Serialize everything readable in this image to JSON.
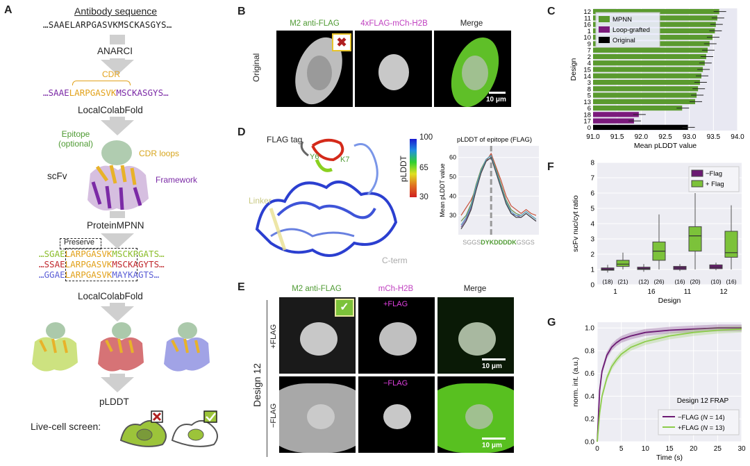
{
  "panelA": {
    "label": "A",
    "title": "Antibody sequence",
    "seq1": "…SAAELARPGASVKMSCKASGYS…",
    "step_anarci": "ANARCI",
    "cdr": "CDR",
    "seq2_pre": "…SAAE",
    "seq2_cdr": "LARPGASVK",
    "seq2_post": "MSCKASGYS…",
    "step_colab1": "LocalColabFold",
    "epitope": "Epitope\n(optional)",
    "cdr_loops": "CDR loops",
    "scfv": "scFv",
    "framework": "Framework",
    "step_mpnn": "ProteinMPNN",
    "preserve": "Preserve",
    "mpnn_seqs": [
      {
        "pre": "…SGAE",
        "mid": "LARPGASVK",
        "post": "MSCKPGATS…",
        "color": "#8bbd2a"
      },
      {
        "pre": "…SSAE",
        "mid": "LARPGASVK",
        "post": "MSCKAGYTS…",
        "color": "#c0282d"
      },
      {
        "pre": "…GGAE",
        "mid": "LARPGASVK",
        "post": "MAYKAGTS…",
        "color": "#5b5ed6"
      }
    ],
    "step_colab2": "LocalColabFold",
    "step_plddt": "pLDDT",
    "live_cell": "Live-cell screen:"
  },
  "panelB": {
    "label": "B",
    "col1": "M2 anti-FLAG",
    "col2": "4xFLAG-mCh-H2B",
    "col3": "Merge",
    "row": "Original",
    "scale": "10 μm"
  },
  "panelC": {
    "label": "C",
    "ylabel": "Design",
    "xlabel": "Mean pLDDT value",
    "legend": [
      "MPNN",
      "Loop-grafted",
      "Original"
    ],
    "colors": {
      "mpnn": "#5a9a2e",
      "loop": "#7b1a7c",
      "orig": "#000000",
      "bg": "#e8e8f2"
    }
  },
  "chart_data": [
    {
      "type": "bar",
      "orientation": "horizontal",
      "ylabel": "Design",
      "xlabel": "Mean pLDDT value",
      "xlim": [
        91.0,
        94.0
      ],
      "xticks": [
        "91.0",
        "91.5",
        "92.0",
        "92.5",
        "93.0",
        "93.5",
        "94.0"
      ],
      "categories": [
        "12",
        "11",
        "16",
        "1",
        "10",
        "9",
        "7",
        "2",
        "4",
        "15",
        "14",
        "3",
        "8",
        "5",
        "13",
        "6",
        "18",
        "17",
        "0"
      ],
      "values": [
        93.62,
        93.58,
        93.55,
        93.53,
        93.48,
        93.42,
        93.38,
        93.35,
        93.32,
        93.28,
        93.25,
        93.22,
        93.18,
        93.15,
        93.12,
        92.85,
        91.95,
        91.85,
        92.97
      ],
      "groups": [
        "MPNN",
        "MPNN",
        "MPNN",
        "MPNN",
        "MPNN",
        "MPNN",
        "MPNN",
        "MPNN",
        "MPNN",
        "MPNN",
        "MPNN",
        "MPNN",
        "MPNN",
        "MPNN",
        "MPNN",
        "MPNN",
        "Loop-grafted",
        "Loop-grafted",
        "Original"
      ],
      "legend": [
        "MPNN",
        "Loop-grafted",
        "Original"
      ],
      "grid": true,
      "legend_position": "top-left"
    },
    {
      "type": "line",
      "title": "pLDDT of epitope (FLAG)",
      "ylabel": "Mean pLDDT value",
      "yticks": [
        "30",
        "40",
        "50",
        "60"
      ],
      "ylim": [
        20,
        66
      ],
      "categories": [
        "S",
        "G",
        "G",
        "S",
        "D",
        "Y",
        "K",
        "D",
        "D",
        "D",
        "D",
        "K",
        "G",
        "S",
        "G",
        "S"
      ],
      "series": [
        {
          "values": [
            30,
            34,
            38,
            44,
            52,
            58,
            62,
            55,
            48,
            40,
            35,
            33,
            31,
            33,
            31,
            30
          ]
        },
        {
          "values": [
            27,
            30,
            36,
            46,
            54,
            59,
            61,
            54,
            46,
            38,
            33,
            31,
            30,
            32,
            30,
            28
          ]
        },
        {
          "values": [
            24,
            28,
            34,
            44,
            53,
            58,
            60,
            53,
            45,
            37,
            31,
            30,
            29,
            31,
            29,
            27
          ]
        },
        {
          "values": [
            25,
            29,
            35,
            45,
            53,
            59,
            61,
            53,
            45,
            37,
            32,
            30,
            30,
            32,
            30,
            28
          ]
        },
        {
          "values": [
            23,
            27,
            33,
            43,
            52,
            58,
            60,
            52,
            44,
            36,
            31,
            29,
            29,
            31,
            29,
            27
          ]
        }
      ],
      "series_colors": [
        "#c8513a",
        "#6a8f4a",
        "#7a5aa8",
        "#5aa0c0",
        "#444444"
      ]
    },
    {
      "type": "box",
      "ylabel": "scFv nuc/cyt ratio",
      "xlabel": "Design",
      "ylim": [
        0,
        8
      ],
      "yticks": [
        "0",
        "1",
        "2",
        "3",
        "4",
        "5",
        "6",
        "7",
        "8"
      ],
      "categories": [
        "1",
        "16",
        "11",
        "12"
      ],
      "legend": [
        "−Flag",
        "+ Flag"
      ],
      "legend_position": "top-right",
      "series": [
        {
          "name": "−Flag",
          "boxes": [
            {
              "q1": 0.95,
              "med": 1.0,
              "q3": 1.1,
              "lo": 0.8,
              "hi": 1.3,
              "n": "(18)"
            },
            {
              "q1": 1.0,
              "med": 1.05,
              "q3": 1.15,
              "lo": 0.85,
              "hi": 1.35,
              "n": "(12)"
            },
            {
              "q1": 1.0,
              "med": 1.1,
              "q3": 1.2,
              "lo": 0.9,
              "hi": 1.35,
              "n": "(16)"
            },
            {
              "q1": 1.05,
              "med": 1.15,
              "q3": 1.3,
              "lo": 0.95,
              "hi": 1.45,
              "n": "(10)"
            }
          ]
        },
        {
          "name": "+ Flag",
          "boxes": [
            {
              "q1": 1.2,
              "med": 1.35,
              "q3": 1.6,
              "lo": 1.0,
              "hi": 2.1,
              "n": "(21)"
            },
            {
              "q1": 1.6,
              "med": 2.2,
              "q3": 2.8,
              "lo": 1.0,
              "hi": 4.6,
              "n": "(26)"
            },
            {
              "q1": 2.2,
              "med": 3.2,
              "q3": 3.8,
              "lo": 1.0,
              "hi": 6.0,
              "n": "(20)"
            },
            {
              "q1": 1.8,
              "med": 2.1,
              "q3": 3.5,
              "lo": 1.0,
              "hi": 5.2,
              "n": "(16)"
            }
          ]
        }
      ]
    },
    {
      "type": "line",
      "title": "Design 12 FRAP",
      "xlabel": "Time (s)",
      "ylabel": "norm. int. (a.u.)",
      "xlim": [
        0,
        30
      ],
      "ylim": [
        0,
        1.05
      ],
      "xticks": [
        "0",
        "5",
        "10",
        "15",
        "20",
        "25",
        "30"
      ],
      "yticks": [
        "0.0",
        "0.2",
        "0.4",
        "0.6",
        "0.8",
        "1.0"
      ],
      "legend_position": "bottom-right",
      "series": [
        {
          "name": "−FLAG (N = 14)",
          "x": [
            0,
            0.5,
            1,
            2,
            3,
            4,
            5,
            7,
            10,
            15,
            20,
            25,
            30
          ],
          "values": [
            0.0,
            0.45,
            0.62,
            0.76,
            0.83,
            0.87,
            0.9,
            0.93,
            0.96,
            0.98,
            0.99,
            1.0,
            1.0
          ]
        },
        {
          "name": "+FLAG (N = 13)",
          "x": [
            0,
            0.5,
            1,
            2,
            3,
            4,
            5,
            7,
            10,
            15,
            20,
            25,
            30
          ],
          "values": [
            0.0,
            0.25,
            0.4,
            0.56,
            0.66,
            0.72,
            0.77,
            0.83,
            0.88,
            0.93,
            0.96,
            0.98,
            0.99
          ]
        }
      ]
    }
  ],
  "panelD": {
    "label": "D",
    "flag_tag": "FLAG tag",
    "y6": "Y6",
    "k7": "K7",
    "linker": "Linker",
    "cterm": "C-term",
    "colorbar_label": "pLDDT",
    "colorbar_ticks": [
      "100",
      "65",
      "30"
    ],
    "sub_title": "pLDDT of epitope (FLAG)",
    "sub_ylabel": "Mean pLDDT value",
    "seq_grey1": "SGGS",
    "seq_green": "DYKDDDDK",
    "seq_grey2": "GSGS"
  },
  "panelE": {
    "label": "E",
    "col1": "M2 anti-FLAG",
    "col2": "mCh-H2B",
    "col3": "Merge",
    "side": "Design 12",
    "row1": "+FLAG",
    "row2": "−FLAG",
    "tag1": "+FLAG",
    "tag2": "−FLAG",
    "scale": "10 μm"
  },
  "panelF": {
    "label": "F",
    "ylabel": "scFv nuc/cyt ratio",
    "xlabel": "Design"
  },
  "panelG": {
    "label": "G",
    "title": "Design 12 FRAP",
    "xlabel": "Time (s)",
    "ylabel": "norm. int. (a.u.)",
    "legend": [
      {
        "pre": "−FLAG (",
        "n": "N",
        "post": " = 14)"
      },
      {
        "pre": "+FLAG (",
        "n": "N",
        "post": " = 13)"
      }
    ]
  }
}
